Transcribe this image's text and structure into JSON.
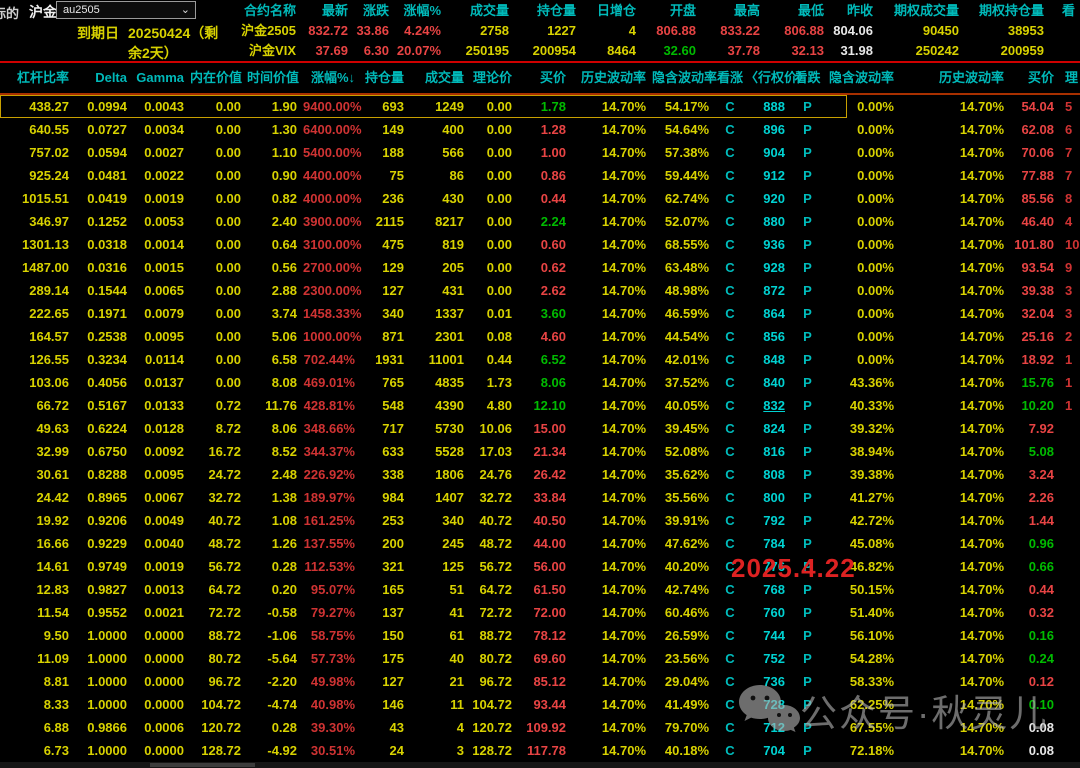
{
  "colors": {
    "bg": "#000000",
    "yellow": "#d8d200",
    "red": "#e84444",
    "green": "#00bb00",
    "cyan": "#00bcbc",
    "white": "#e8e8e8",
    "sep_red": "#cf0000",
    "sep_orange": "#a83000",
    "selection": "#c8a000"
  },
  "header": {
    "underlying_label": "标的",
    "underlying_name": "沪金",
    "contract_select_value": "au2505",
    "expiry_label": "到期日",
    "expiry_value": "20250424（剩余2天）",
    "quote_columns": [
      "合约名称",
      "最新",
      "涨跌",
      "涨幅%",
      "成交量",
      "持仓量",
      "日增仓",
      "开盘",
      "最高",
      "最低",
      "昨收",
      "期权成交量",
      "期权持仓量",
      "看"
    ],
    "quote_rows": [
      {
        "values": [
          "沪金2505",
          "832.72",
          "33.86",
          "4.24%",
          "2758",
          "1227",
          "4",
          "806.88",
          "833.22",
          "806.88",
          "804.06",
          "90450",
          "38953",
          ""
        ],
        "colors": [
          "y",
          "r",
          "r",
          "r",
          "y",
          "y",
          "y",
          "r",
          "r",
          "r",
          "w",
          "y",
          "y",
          "y"
        ]
      },
      {
        "values": [
          "沪金VIX",
          "37.69",
          "6.30",
          "20.07%",
          "250195",
          "200954",
          "8464",
          "32.60",
          "37.78",
          "32.13",
          "31.98",
          "250242",
          "200959",
          ""
        ],
        "colors": [
          "y",
          "r",
          "r",
          "r",
          "y",
          "y",
          "y",
          "g",
          "r",
          "r",
          "w",
          "y",
          "y",
          "y"
        ]
      }
    ]
  },
  "table": {
    "columns": [
      "杠杆比率",
      "Delta",
      "Gamma",
      "内在价值",
      "时间价值",
      "涨幅%↓",
      "持仓量",
      "成交量",
      "理论价",
      "买价",
      "历史波动率",
      "隐含波动率",
      "看涨",
      "〈行权价〉",
      "看跌",
      "隐含波动率",
      "历史波动率",
      "买价",
      "理"
    ],
    "column_keys": [
      "leverage",
      "delta",
      "gamma",
      "intrinsic-value",
      "time-value",
      "change-pct",
      "open-interest",
      "volume",
      "theo-price",
      "call-bid",
      "call-hist-vol",
      "call-impl-vol",
      "call-flag",
      "strike",
      "put-flag",
      "put-impl-vol",
      "put-hist-vol",
      "put-bid",
      "clipped-col"
    ],
    "rows": [
      {
        "v": [
          "438.27",
          "0.0994",
          "0.0043",
          "0.00",
          "1.90",
          "9400.00%",
          "693",
          "1249",
          "0.00",
          "1.78",
          "14.70%",
          "54.17%",
          "C",
          "888",
          "P",
          "0.00%",
          "14.70%",
          "54.04",
          "5"
        ],
        "cb": "g",
        "pb": "r",
        "atm": false
      },
      {
        "v": [
          "640.55",
          "0.0727",
          "0.0034",
          "0.00",
          "1.30",
          "6400.00%",
          "149",
          "400",
          "0.00",
          "1.28",
          "14.70%",
          "54.64%",
          "C",
          "896",
          "P",
          "0.00%",
          "14.70%",
          "62.08",
          "6"
        ],
        "cb": "r",
        "pb": "r",
        "atm": false
      },
      {
        "v": [
          "757.02",
          "0.0594",
          "0.0027",
          "0.00",
          "1.10",
          "5400.00%",
          "188",
          "566",
          "0.00",
          "1.00",
          "14.70%",
          "57.38%",
          "C",
          "904",
          "P",
          "0.00%",
          "14.70%",
          "70.06",
          "7"
        ],
        "cb": "r",
        "pb": "r",
        "atm": false
      },
      {
        "v": [
          "925.24",
          "0.0481",
          "0.0022",
          "0.00",
          "0.90",
          "4400.00%",
          "75",
          "86",
          "0.00",
          "0.86",
          "14.70%",
          "59.44%",
          "C",
          "912",
          "P",
          "0.00%",
          "14.70%",
          "77.88",
          "7"
        ],
        "cb": "r",
        "pb": "r",
        "atm": false
      },
      {
        "v": [
          "1015.51",
          "0.0419",
          "0.0019",
          "0.00",
          "0.82",
          "4000.00%",
          "236",
          "430",
          "0.00",
          "0.44",
          "14.70%",
          "62.74%",
          "C",
          "920",
          "P",
          "0.00%",
          "14.70%",
          "85.56",
          "8"
        ],
        "cb": "r",
        "pb": "r",
        "atm": false
      },
      {
        "v": [
          "346.97",
          "0.1252",
          "0.0053",
          "0.00",
          "2.40",
          "3900.00%",
          "2115",
          "8217",
          "0.00",
          "2.24",
          "14.70%",
          "52.07%",
          "C",
          "880",
          "P",
          "0.00%",
          "14.70%",
          "46.40",
          "4"
        ],
        "cb": "g",
        "pb": "r",
        "atm": false
      },
      {
        "v": [
          "1301.13",
          "0.0318",
          "0.0014",
          "0.00",
          "0.64",
          "3100.00%",
          "475",
          "819",
          "0.00",
          "0.60",
          "14.70%",
          "68.55%",
          "C",
          "936",
          "P",
          "0.00%",
          "14.70%",
          "101.80",
          "10"
        ],
        "cb": "r",
        "pb": "r",
        "atm": false
      },
      {
        "v": [
          "1487.00",
          "0.0316",
          "0.0015",
          "0.00",
          "0.56",
          "2700.00%",
          "129",
          "205",
          "0.00",
          "0.62",
          "14.70%",
          "63.48%",
          "C",
          "928",
          "P",
          "0.00%",
          "14.70%",
          "93.54",
          "9"
        ],
        "cb": "r",
        "pb": "r",
        "atm": false
      },
      {
        "v": [
          "289.14",
          "0.1544",
          "0.0065",
          "0.00",
          "2.88",
          "2300.00%",
          "127",
          "431",
          "0.00",
          "2.62",
          "14.70%",
          "48.98%",
          "C",
          "872",
          "P",
          "0.00%",
          "14.70%",
          "39.38",
          "3"
        ],
        "cb": "r",
        "pb": "r",
        "atm": false
      },
      {
        "v": [
          "222.65",
          "0.1971",
          "0.0079",
          "0.00",
          "3.74",
          "1458.33%",
          "340",
          "1337",
          "0.01",
          "3.60",
          "14.70%",
          "46.59%",
          "C",
          "864",
          "P",
          "0.00%",
          "14.70%",
          "32.04",
          "3"
        ],
        "cb": "g",
        "pb": "r",
        "atm": false
      },
      {
        "v": [
          "164.57",
          "0.2538",
          "0.0095",
          "0.00",
          "5.06",
          "1000.00%",
          "871",
          "2301",
          "0.08",
          "4.60",
          "14.70%",
          "44.54%",
          "C",
          "856",
          "P",
          "0.00%",
          "14.70%",
          "25.16",
          "2"
        ],
        "cb": "r",
        "pb": "r",
        "atm": false
      },
      {
        "v": [
          "126.55",
          "0.3234",
          "0.0114",
          "0.00",
          "6.58",
          "702.44%",
          "1931",
          "11001",
          "0.44",
          "6.52",
          "14.70%",
          "42.01%",
          "C",
          "848",
          "P",
          "0.00%",
          "14.70%",
          "18.92",
          "1"
        ],
        "cb": "g",
        "pb": "r",
        "atm": false
      },
      {
        "v": [
          "103.06",
          "0.4056",
          "0.0137",
          "0.00",
          "8.08",
          "469.01%",
          "765",
          "4835",
          "1.73",
          "8.06",
          "14.70%",
          "37.52%",
          "C",
          "840",
          "P",
          "43.36%",
          "14.70%",
          "15.76",
          "1"
        ],
        "cb": "g",
        "pb": "g",
        "atm": false
      },
      {
        "v": [
          "66.72",
          "0.5167",
          "0.0133",
          "0.72",
          "11.76",
          "428.81%",
          "548",
          "4390",
          "4.80",
          "12.10",
          "14.70%",
          "40.05%",
          "C",
          "832",
          "P",
          "40.33%",
          "14.70%",
          "10.20",
          "1"
        ],
        "cb": "g",
        "pb": "g",
        "atm": true
      },
      {
        "v": [
          "49.63",
          "0.6224",
          "0.0128",
          "8.72",
          "8.06",
          "348.66%",
          "717",
          "5730",
          "10.06",
          "15.00",
          "14.70%",
          "39.45%",
          "C",
          "824",
          "P",
          "39.32%",
          "14.70%",
          "7.92",
          ""
        ],
        "cb": "r",
        "pb": "r",
        "atm": false
      },
      {
        "v": [
          "32.99",
          "0.6750",
          "0.0092",
          "16.72",
          "8.52",
          "344.37%",
          "633",
          "5528",
          "17.03",
          "21.34",
          "14.70%",
          "52.08%",
          "C",
          "816",
          "P",
          "38.94%",
          "14.70%",
          "5.08",
          ""
        ],
        "cb": "r",
        "pb": "g",
        "atm": false
      },
      {
        "v": [
          "30.61",
          "0.8288",
          "0.0095",
          "24.72",
          "2.48",
          "226.92%",
          "338",
          "1806",
          "24.76",
          "26.42",
          "14.70%",
          "35.62%",
          "C",
          "808",
          "P",
          "39.38%",
          "14.70%",
          "3.24",
          ""
        ],
        "cb": "r",
        "pb": "r",
        "atm": false
      },
      {
        "v": [
          "24.42",
          "0.8965",
          "0.0067",
          "32.72",
          "1.38",
          "189.97%",
          "984",
          "1407",
          "32.72",
          "33.84",
          "14.70%",
          "35.56%",
          "C",
          "800",
          "P",
          "41.27%",
          "14.70%",
          "2.26",
          ""
        ],
        "cb": "r",
        "pb": "r",
        "atm": false
      },
      {
        "v": [
          "19.92",
          "0.9206",
          "0.0049",
          "40.72",
          "1.08",
          "161.25%",
          "253",
          "340",
          "40.72",
          "40.50",
          "14.70%",
          "39.91%",
          "C",
          "792",
          "P",
          "42.72%",
          "14.70%",
          "1.44",
          ""
        ],
        "cb": "r",
        "pb": "r",
        "atm": false
      },
      {
        "v": [
          "16.66",
          "0.9229",
          "0.0040",
          "48.72",
          "1.26",
          "137.55%",
          "200",
          "245",
          "48.72",
          "44.00",
          "14.70%",
          "47.62%",
          "C",
          "784",
          "P",
          "45.08%",
          "14.70%",
          "0.96",
          ""
        ],
        "cb": "r",
        "pb": "g",
        "atm": false
      },
      {
        "v": [
          "14.61",
          "0.9749",
          "0.0019",
          "56.72",
          "0.28",
          "112.53%",
          "321",
          "125",
          "56.72",
          "56.00",
          "14.70%",
          "40.20%",
          "C",
          "776",
          "P",
          "46.82%",
          "14.70%",
          "0.66",
          ""
        ],
        "cb": "r",
        "pb": "g",
        "atm": false
      },
      {
        "v": [
          "12.83",
          "0.9827",
          "0.0013",
          "64.72",
          "0.20",
          "95.07%",
          "165",
          "51",
          "64.72",
          "61.50",
          "14.70%",
          "42.74%",
          "C",
          "768",
          "P",
          "50.15%",
          "14.70%",
          "0.44",
          ""
        ],
        "cb": "r",
        "pb": "r",
        "atm": false
      },
      {
        "v": [
          "11.54",
          "0.9552",
          "0.0021",
          "72.72",
          "-0.58",
          "79.27%",
          "137",
          "41",
          "72.72",
          "72.00",
          "14.70%",
          "60.46%",
          "C",
          "760",
          "P",
          "51.40%",
          "14.70%",
          "0.32",
          ""
        ],
        "cb": "r",
        "pb": "r",
        "atm": false
      },
      {
        "v": [
          "9.50",
          "1.0000",
          "0.0000",
          "88.72",
          "-1.06",
          "58.75%",
          "150",
          "61",
          "88.72",
          "78.12",
          "14.70%",
          "26.59%",
          "C",
          "744",
          "P",
          "56.10%",
          "14.70%",
          "0.16",
          ""
        ],
        "cb": "r",
        "pb": "g",
        "atm": false
      },
      {
        "v": [
          "11.09",
          "1.0000",
          "0.0000",
          "80.72",
          "-5.64",
          "57.73%",
          "175",
          "40",
          "80.72",
          "69.60",
          "14.70%",
          "23.56%",
          "C",
          "752",
          "P",
          "54.28%",
          "14.70%",
          "0.24",
          ""
        ],
        "cb": "r",
        "pb": "g",
        "atm": false
      },
      {
        "v": [
          "8.81",
          "1.0000",
          "0.0000",
          "96.72",
          "-2.20",
          "49.98%",
          "127",
          "21",
          "96.72",
          "85.12",
          "14.70%",
          "29.04%",
          "C",
          "736",
          "P",
          "58.33%",
          "14.70%",
          "0.12",
          ""
        ],
        "cb": "r",
        "pb": "r",
        "atm": false
      },
      {
        "v": [
          "8.33",
          "1.0000",
          "0.0000",
          "104.72",
          "-4.74",
          "40.98%",
          "146",
          "11",
          "104.72",
          "93.44",
          "14.70%",
          "41.49%",
          "C",
          "728",
          "P",
          "62.25%",
          "14.70%",
          "0.10",
          ""
        ],
        "cb": "r",
        "pb": "g",
        "atm": false
      },
      {
        "v": [
          "6.88",
          "0.9866",
          "0.0006",
          "120.72",
          "0.28",
          "39.30%",
          "43",
          "4",
          "120.72",
          "109.92",
          "14.70%",
          "79.70%",
          "C",
          "712",
          "P",
          "67.55%",
          "14.70%",
          "0.08",
          ""
        ],
        "cb": "r",
        "pb": "w",
        "atm": false
      },
      {
        "v": [
          "6.73",
          "1.0000",
          "0.0000",
          "128.72",
          "-4.92",
          "30.51%",
          "24",
          "3",
          "128.72",
          "117.78",
          "14.70%",
          "40.18%",
          "C",
          "704",
          "P",
          "72.18%",
          "14.70%",
          "0.08",
          ""
        ],
        "cb": "r",
        "pb": "w",
        "atm": false
      }
    ]
  },
  "watermarks": {
    "date": "2025.4.22",
    "wechat": "公众号·秋灵儿"
  }
}
